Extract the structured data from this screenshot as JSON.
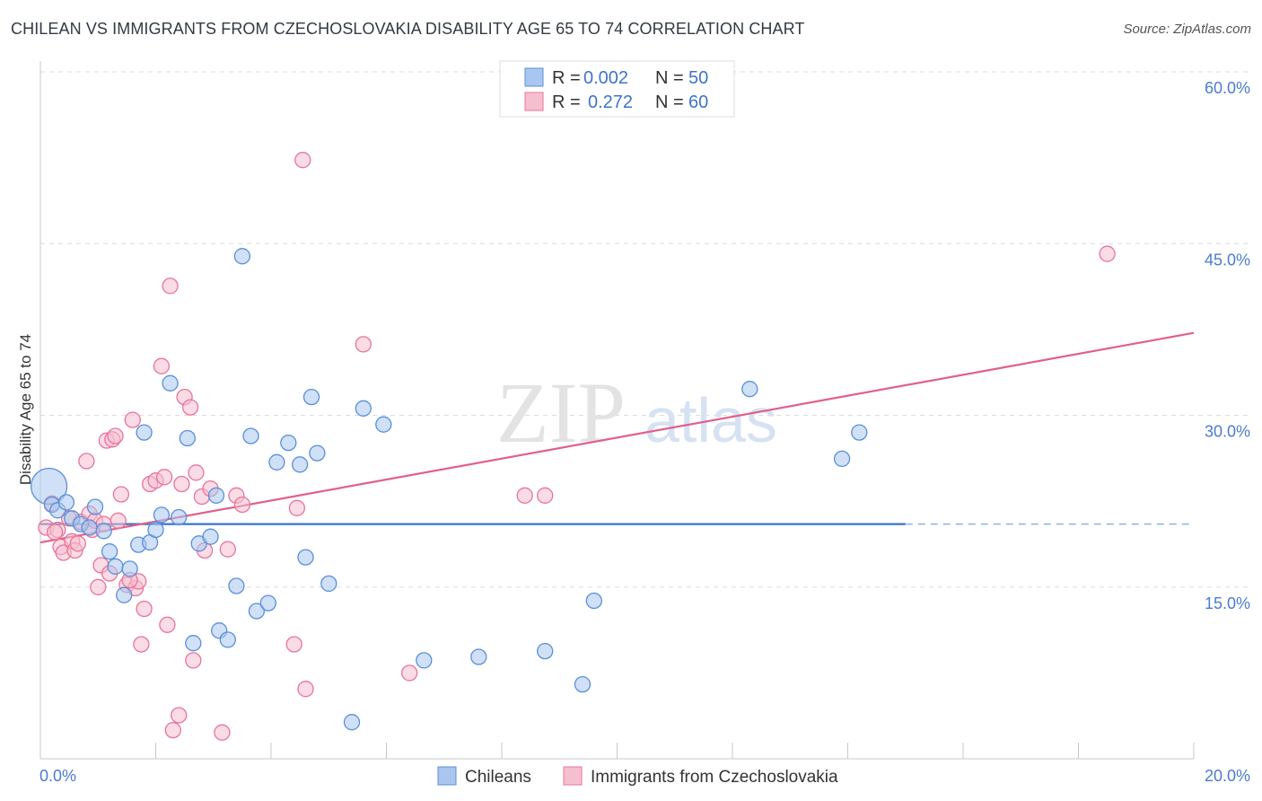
{
  "title": "CHILEAN VS IMMIGRANTS FROM CZECHOSLOVAKIA DISABILITY AGE 65 TO 74 CORRELATION CHART",
  "source": "Source: ZipAtlas.com",
  "watermark": {
    "zip": "ZIP",
    "atlas": "atlas"
  },
  "chart_data": {
    "type": "scatter",
    "ylabel": "Disability Age 65 to 74",
    "xlabel": "",
    "xlim": [
      0,
      20
    ],
    "ylim": [
      0,
      60
    ],
    "x_tick_labels": [
      "0.0%",
      "20.0%"
    ],
    "y_ticks": [
      15,
      30,
      45,
      60
    ],
    "y_tick_labels": [
      "15.0%",
      "30.0%",
      "45.0%",
      "60.0%"
    ],
    "legend": {
      "position": "top-center",
      "rows": [
        {
          "r_label": "R = ",
          "r_value": "0.002",
          "n_label": "N = ",
          "n_value": "50"
        },
        {
          "r_label": "R = ",
          "r_value": "0.272",
          "n_label": "N = ",
          "n_value": "60"
        }
      ]
    },
    "series": [
      {
        "name": "Chileans",
        "color": "#5b8fd9",
        "fill": "#a9c6ee",
        "trend": {
          "x": [
            0,
            15
          ],
          "y": [
            20.5,
            20.5
          ],
          "dashed_to_x": 20
        },
        "points": [
          [
            0.15,
            23.8
          ],
          [
            0.2,
            22.2
          ],
          [
            0.3,
            21.7
          ],
          [
            0.45,
            22.4
          ],
          [
            0.55,
            21.0
          ],
          [
            0.7,
            20.5
          ],
          [
            0.85,
            20.2
          ],
          [
            0.95,
            22.0
          ],
          [
            1.1,
            19.9
          ],
          [
            1.2,
            18.1
          ],
          [
            1.3,
            16.8
          ],
          [
            1.45,
            14.3
          ],
          [
            1.55,
            16.6
          ],
          [
            1.7,
            18.7
          ],
          [
            1.8,
            28.5
          ],
          [
            1.9,
            18.9
          ],
          [
            2.0,
            20.0
          ],
          [
            2.1,
            21.3
          ],
          [
            2.25,
            32.8
          ],
          [
            2.4,
            21.1
          ],
          [
            2.55,
            28.0
          ],
          [
            2.65,
            10.1
          ],
          [
            2.75,
            18.8
          ],
          [
            2.95,
            19.4
          ],
          [
            3.05,
            23.0
          ],
          [
            3.1,
            11.2
          ],
          [
            3.25,
            10.4
          ],
          [
            3.4,
            15.1
          ],
          [
            3.5,
            43.9
          ],
          [
            3.65,
            28.2
          ],
          [
            3.75,
            12.9
          ],
          [
            3.95,
            13.6
          ],
          [
            4.1,
            25.9
          ],
          [
            4.3,
            27.6
          ],
          [
            4.5,
            25.7
          ],
          [
            4.6,
            17.6
          ],
          [
            4.7,
            31.6
          ],
          [
            4.8,
            26.7
          ],
          [
            5.0,
            15.3
          ],
          [
            5.4,
            3.2
          ],
          [
            5.6,
            30.6
          ],
          [
            5.95,
            29.2
          ],
          [
            6.65,
            8.6
          ],
          [
            7.6,
            8.9
          ],
          [
            8.75,
            9.4
          ],
          [
            9.4,
            6.5
          ],
          [
            9.6,
            13.8
          ],
          [
            12.3,
            32.3
          ],
          [
            13.9,
            26.2
          ],
          [
            14.2,
            28.5
          ]
        ]
      },
      {
        "name": "Immigrants from Czechoslovakia",
        "color": "#e8749b",
        "fill": "#f6bfd0",
        "trend": {
          "x": [
            0,
            20
          ],
          "y": [
            18.9,
            37.2
          ]
        },
        "points": [
          [
            0.1,
            20.2
          ],
          [
            0.2,
            22.3
          ],
          [
            0.3,
            20.0
          ],
          [
            0.35,
            18.5
          ],
          [
            0.4,
            18.0
          ],
          [
            0.55,
            19.0
          ],
          [
            0.6,
            18.2
          ],
          [
            0.7,
            20.7
          ],
          [
            0.8,
            26.0
          ],
          [
            0.85,
            21.4
          ],
          [
            0.9,
            20.0
          ],
          [
            0.95,
            20.8
          ],
          [
            1.0,
            15.0
          ],
          [
            1.05,
            16.9
          ],
          [
            1.15,
            27.8
          ],
          [
            1.2,
            16.2
          ],
          [
            1.25,
            27.9
          ],
          [
            1.3,
            28.2
          ],
          [
            1.35,
            20.8
          ],
          [
            1.4,
            23.1
          ],
          [
            1.5,
            15.2
          ],
          [
            1.6,
            29.6
          ],
          [
            1.65,
            14.9
          ],
          [
            1.7,
            15.5
          ],
          [
            1.75,
            10.0
          ],
          [
            1.8,
            13.1
          ],
          [
            1.9,
            24.0
          ],
          [
            2.0,
            24.3
          ],
          [
            2.1,
            34.3
          ],
          [
            2.15,
            24.6
          ],
          [
            2.2,
            11.7
          ],
          [
            2.25,
            41.3
          ],
          [
            2.3,
            2.5
          ],
          [
            2.4,
            3.8
          ],
          [
            2.45,
            24.0
          ],
          [
            2.5,
            31.6
          ],
          [
            2.6,
            30.7
          ],
          [
            2.65,
            8.6
          ],
          [
            2.7,
            25.0
          ],
          [
            2.8,
            22.9
          ],
          [
            2.85,
            18.2
          ],
          [
            2.95,
            23.6
          ],
          [
            3.15,
            2.3
          ],
          [
            3.25,
            18.3
          ],
          [
            3.4,
            23.0
          ],
          [
            3.5,
            22.2
          ],
          [
            4.4,
            10.0
          ],
          [
            4.45,
            21.9
          ],
          [
            4.6,
            6.1
          ],
          [
            4.55,
            52.3
          ],
          [
            5.6,
            36.2
          ],
          [
            6.4,
            7.5
          ],
          [
            8.4,
            23.0
          ],
          [
            8.75,
            23.0
          ],
          [
            18.5,
            44.1
          ],
          [
            0.25,
            19.8
          ],
          [
            0.5,
            21.0
          ],
          [
            0.65,
            18.8
          ],
          [
            1.1,
            20.5
          ],
          [
            1.55,
            15.6
          ]
        ]
      }
    ]
  }
}
